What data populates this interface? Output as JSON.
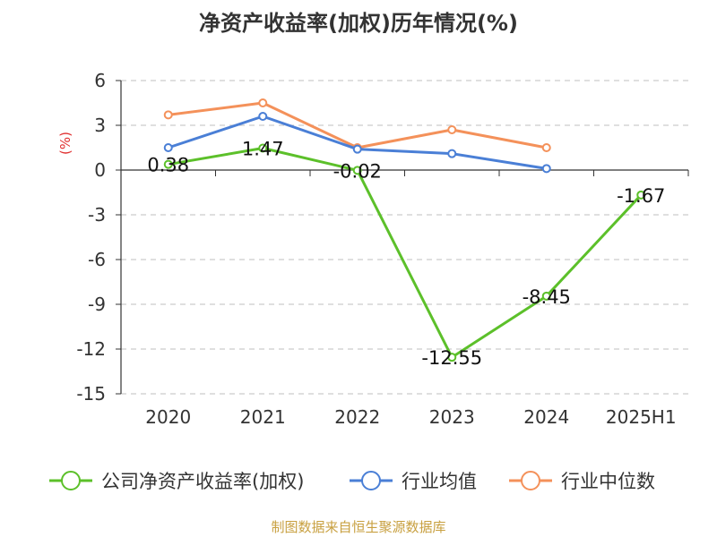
{
  "chart_data": {
    "type": "line",
    "title": "净资产收益率(加权)历年情况(%)",
    "ylabel": "(%)",
    "xlabel": "",
    "categories": [
      "2020",
      "2021",
      "2022",
      "2023",
      "2024",
      "2025H1"
    ],
    "ylim": [
      -15,
      6
    ],
    "yticks": [
      6,
      3,
      0,
      -3,
      -6,
      -9,
      -12,
      -15
    ],
    "ytick_labels": [
      "6",
      "3",
      "0",
      "-3",
      "-6",
      "-9",
      "-12",
      "-15"
    ],
    "grid": true,
    "legend_position": "bottom",
    "series": [
      {
        "name": "公司净资产收益率(加权)",
        "color": "#5cc02a",
        "values": [
          0.38,
          1.47,
          -0.02,
          -12.55,
          -8.45,
          -1.67
        ],
        "data_labels": [
          "0.38",
          "1.47",
          "-0.02",
          "-12.55",
          "-8.45",
          "-1.67"
        ]
      },
      {
        "name": "行业均值",
        "color": "#4a7fd6",
        "values": [
          1.5,
          3.6,
          1.4,
          1.1,
          0.1,
          null
        ]
      },
      {
        "name": "行业中位数",
        "color": "#f4915a",
        "values": [
          3.7,
          4.5,
          1.5,
          2.7,
          1.5,
          null
        ]
      }
    ]
  },
  "source_note": "制图数据来自恒生聚源数据库",
  "colors": {
    "title": "#333333",
    "ylabel": "#e03030",
    "grid": "#cccccc",
    "axis": "#333333",
    "source_note": "#c8a040"
  }
}
